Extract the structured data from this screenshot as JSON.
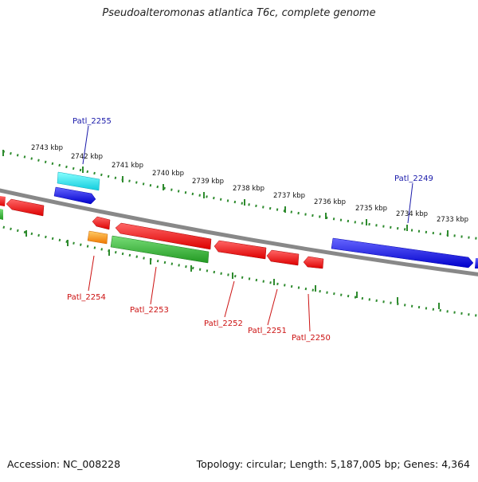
{
  "title": "Pseudoalteromonas atlantica T6c, complete genome",
  "footer": {
    "accession": "Accession: NC_008228",
    "summary": "Topology: circular; Length: 5,187,005 bp; Genes: 4,364"
  },
  "colors": {
    "backbone": "#888888",
    "tick": "#2e8b2e",
    "forward_label": "#1a1aaa",
    "reverse_label": "#cc1111",
    "red_gene": "#ee1111",
    "blue_gene": "#1111ee",
    "cyan_gene": "#22e6ee",
    "green_gene": "#33bb33",
    "orange_gene": "#ff9911"
  },
  "kbp_labels": [
    "2743 kbp",
    "2742 kbp",
    "2741 kbp",
    "2740 kbp",
    "2739 kbp",
    "2738 kbp",
    "2737 kbp",
    "2736 kbp",
    "2735 kbp",
    "2734 kbp",
    "2733 kbp"
  ],
  "gene_labels": {
    "forward": [
      "Patl_2255",
      "Patl_2249"
    ],
    "reverse": [
      "Patl_2254",
      "Patl_2253",
      "Patl_2252",
      "Patl_2251",
      "Patl_2250"
    ]
  }
}
